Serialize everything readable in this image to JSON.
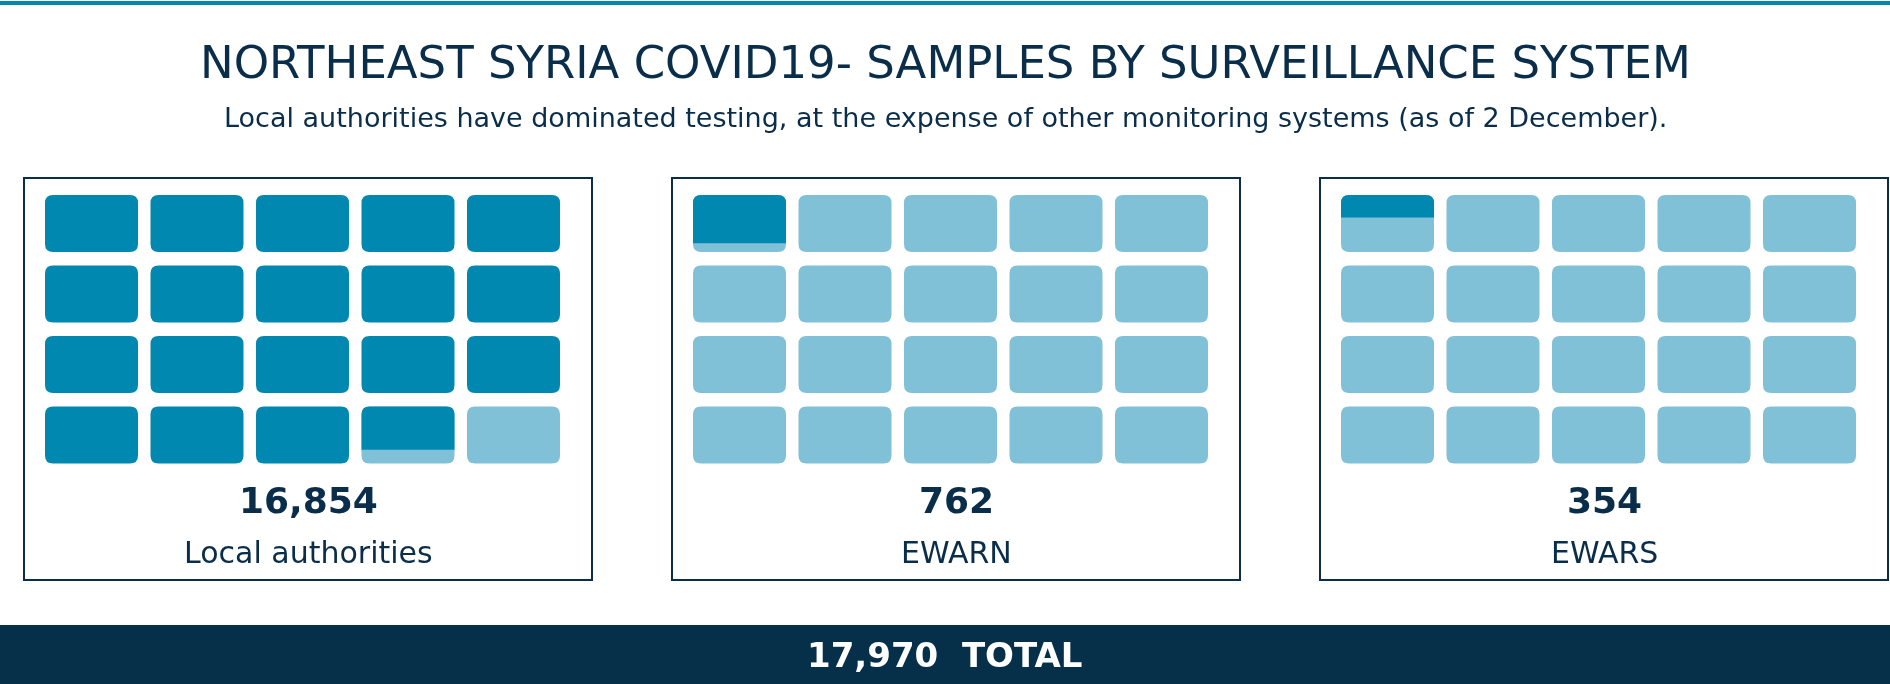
{
  "chart_data": {
    "type": "other",
    "title": "NORTHEAST SYRIA COVID19- SAMPLES BY SURVEILLANCE SYSTEM",
    "subtitle": "Local authorities have dominated testing, at the expense of other monitoring systems (as of 2 December).",
    "categories": [
      "Local authorities",
      "EWARN",
      "EWARS"
    ],
    "values": [
      16854,
      762,
      354
    ],
    "value_labels": [
      "16,854",
      "762",
      "354"
    ],
    "color": "#0088b0",
    "annotations": [
      "17,970  TOTAL"
    ]
  }
}
